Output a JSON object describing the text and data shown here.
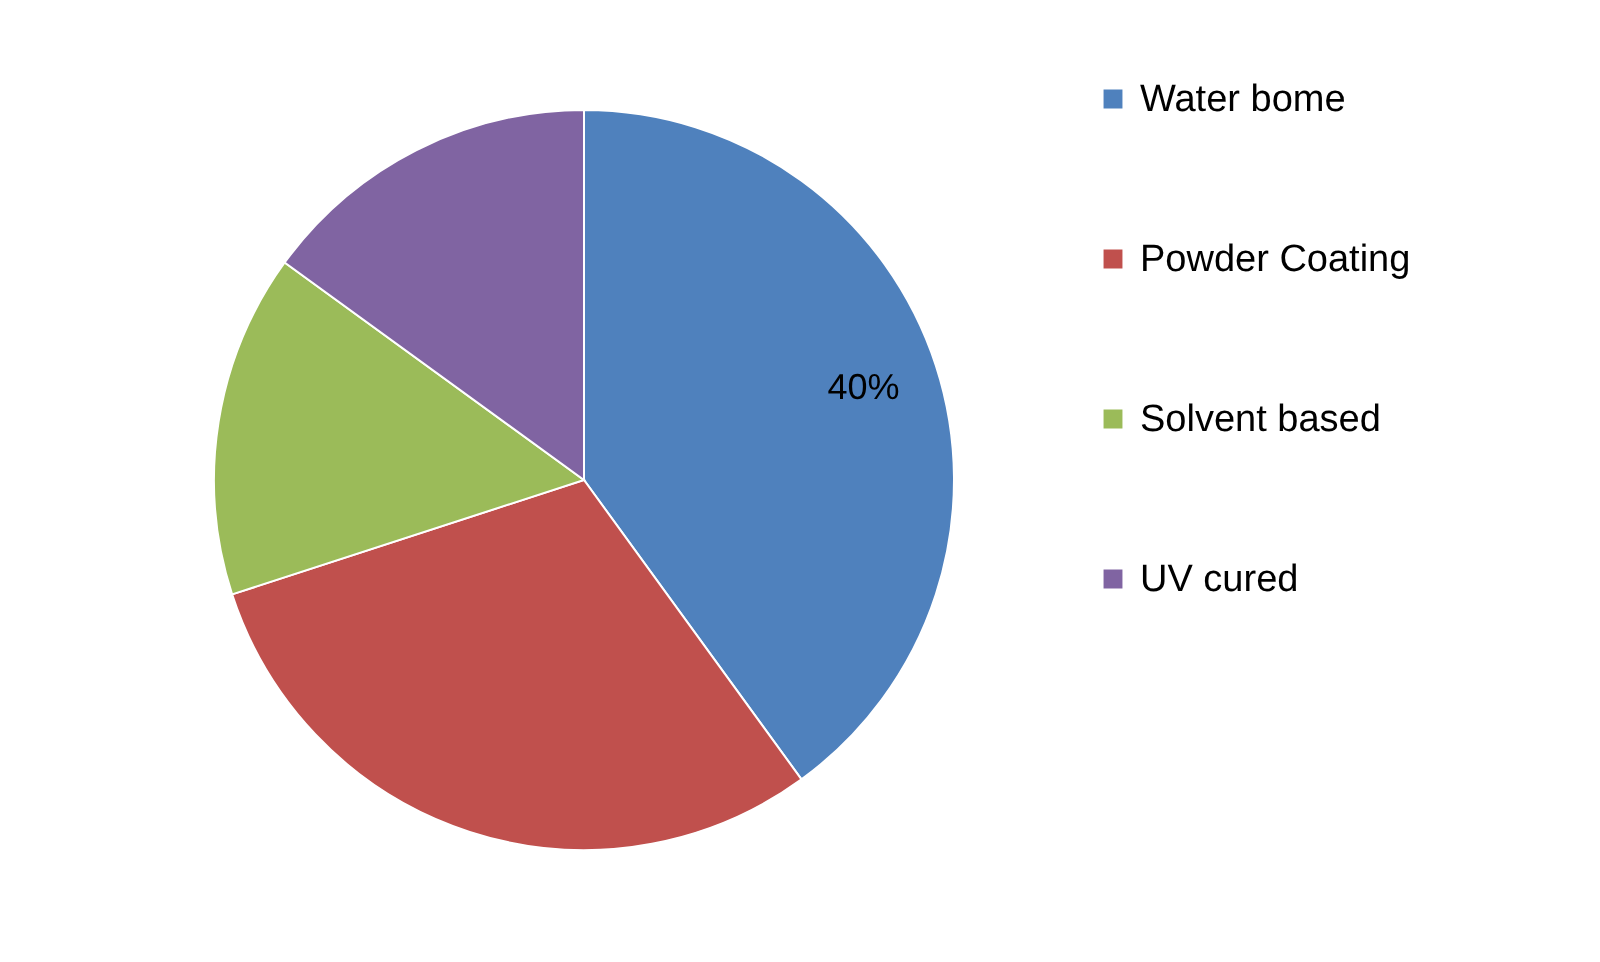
{
  "chart_data": {
    "type": "pie",
    "categories": [
      "Water bome",
      "Powder Coating",
      "Solvent based",
      "UV cured"
    ],
    "values": [
      40,
      30,
      15,
      15
    ],
    "colors": [
      "#4f81bd",
      "#c0504d",
      "#9bbb59",
      "#8064a2"
    ],
    "value_labels": [
      "40%",
      null,
      null,
      null
    ],
    "legend": "right"
  }
}
